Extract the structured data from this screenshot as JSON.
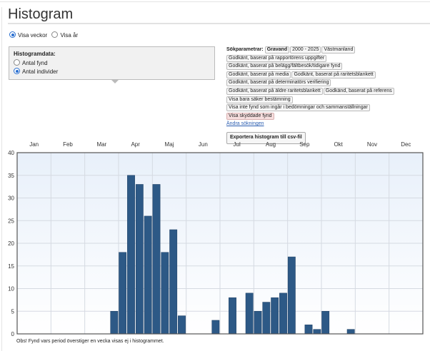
{
  "title": "Histogram",
  "view_options": [
    {
      "label": "Visa veckor",
      "selected": true
    },
    {
      "label": "Visa år",
      "selected": false
    }
  ],
  "histogram_data": {
    "label": "Histogramdata:",
    "options": [
      {
        "label": "Antal fynd",
        "selected": false
      },
      {
        "label": "Antal individer",
        "selected": true
      }
    ]
  },
  "search_params": {
    "label": "Sökparametrar:",
    "tags": [
      {
        "text": "Gravand",
        "style": "bold"
      },
      {
        "text": "2000 - 2025",
        "style": "normal"
      },
      {
        "text": "Västmanland",
        "style": "normal"
      },
      {
        "text": "Godkänt, baserat på rapportörens uppgifter",
        "style": "normal"
      },
      {
        "text": "Godkänt, baserat på belägg/fältbesök/tidigare fynd",
        "style": "normal"
      },
      {
        "text": "Godkänt, baserat på media",
        "style": "normal"
      },
      {
        "text": "Godkänt, baserat på raritetsblankett",
        "style": "normal"
      },
      {
        "text": "Godkänt, baserat på determinatörs verifiering",
        "style": "normal"
      },
      {
        "text": "Godkänt, baserat på äldre raritetsblankett",
        "style": "normal"
      },
      {
        "text": "Godkänd, baserat på referens",
        "style": "normal"
      },
      {
        "text": "Visa bara säker bestämning",
        "style": "normal"
      },
      {
        "text": "Visa inte fynd som ingår i bedömningar och sammanställningar",
        "style": "normal"
      },
      {
        "text": "Visa skyddade fynd",
        "style": "red"
      }
    ],
    "change_link": "Ändra sökningen",
    "export_button": "Exportera histogram till csv-fil"
  },
  "note": "Obs! Fynd vars period överstiger en vecka visas ej i histogrammet.",
  "colors": {
    "bar": "#2d5986",
    "bar_border": "#1e3f63",
    "grid": "#d5dae2"
  },
  "chart_data": {
    "type": "bar",
    "title": "",
    "xlabel": "",
    "ylabel": "",
    "months": [
      "Jan",
      "Feb",
      "Mar",
      "Apr",
      "Maj",
      "Jun",
      "Jul",
      "Aug",
      "Sep",
      "Okt",
      "Nov",
      "Dec"
    ],
    "bins": 48,
    "values": [
      0,
      0,
      0,
      0,
      0,
      0,
      0,
      0,
      0,
      0,
      0,
      5,
      18,
      35,
      33,
      26,
      33,
      18,
      23,
      4,
      0,
      0,
      0,
      3,
      0,
      8,
      0,
      9,
      5,
      7,
      8,
      9,
      17,
      0,
      2,
      1,
      5,
      0,
      0,
      1,
      0,
      0,
      0,
      0,
      0,
      0,
      0,
      0
    ],
    "ylim": [
      0,
      40
    ],
    "yticks": [
      0,
      5,
      10,
      15,
      20,
      25,
      30,
      35,
      40
    ],
    "grid": true
  }
}
